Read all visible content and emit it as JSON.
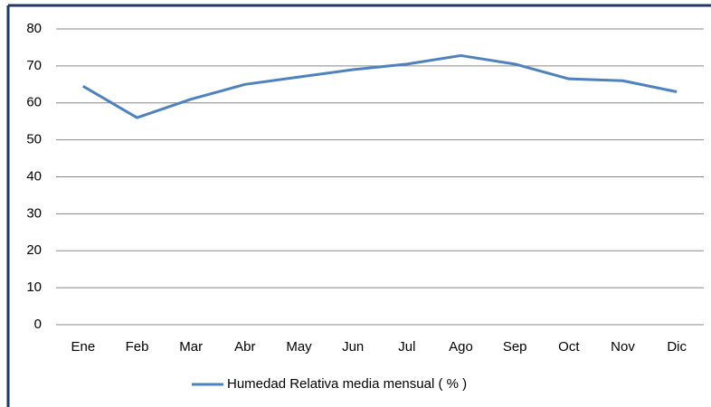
{
  "chart_data": {
    "type": "line",
    "categories": [
      "Ene",
      "Feb",
      "Mar",
      "Abr",
      "May",
      "Jun",
      "Jul",
      "Ago",
      "Sep",
      "Oct",
      "Nov",
      "Dic"
    ],
    "series": [
      {
        "name": "Humedad Relativa media mensual  ( % )",
        "color": "#4f81bd",
        "values": [
          64.5,
          56,
          61,
          65,
          67,
          69,
          70.5,
          72.8,
          70.5,
          66.5,
          66,
          63
        ]
      }
    ],
    "ylim": [
      0,
      80
    ],
    "yticks": [
      0,
      10,
      20,
      30,
      40,
      50,
      60,
      70,
      80
    ],
    "grid": true,
    "legend": "bottom"
  }
}
